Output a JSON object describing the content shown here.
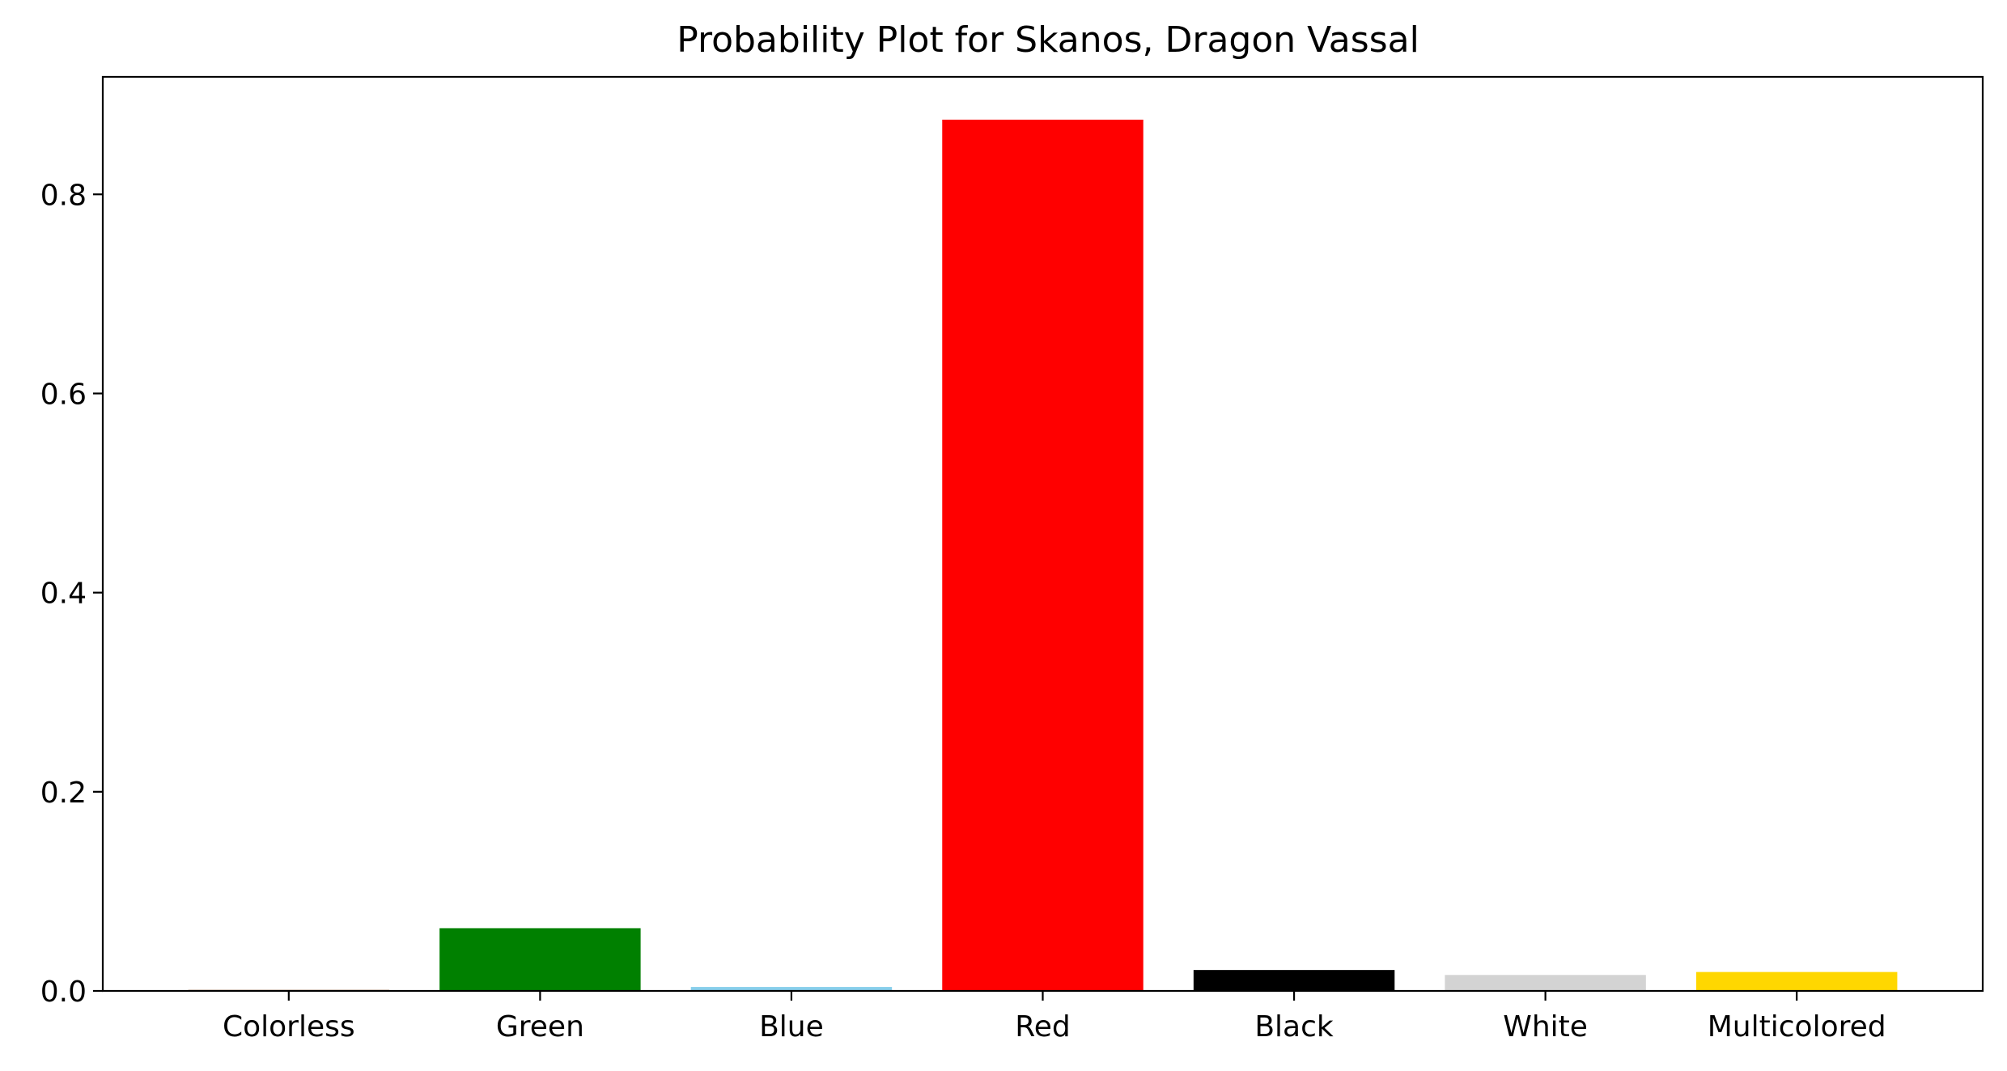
{
  "chart_data": {
    "type": "bar",
    "title": "Probability Plot for Skanos, Dragon Vassal",
    "xlabel": "",
    "ylabel": "",
    "categories": [
      "Colorless",
      "Green",
      "Blue",
      "Red",
      "Black",
      "White",
      "Multicolored"
    ],
    "values": [
      0.001,
      0.063,
      0.004,
      0.875,
      0.021,
      0.016,
      0.019
    ],
    "colors": [
      "#8b4513",
      "#008000",
      "#87ceeb",
      "#ff0000",
      "#000000",
      "#d3d3d3",
      "#ffd700"
    ],
    "ylim": [
      0,
      0.918
    ],
    "yticks": [
      0.0,
      0.2,
      0.4,
      0.6,
      0.8
    ],
    "ytick_labels": [
      "0.0",
      "0.2",
      "0.4",
      "0.6",
      "0.8"
    ],
    "grid": false,
    "legend": "none"
  }
}
